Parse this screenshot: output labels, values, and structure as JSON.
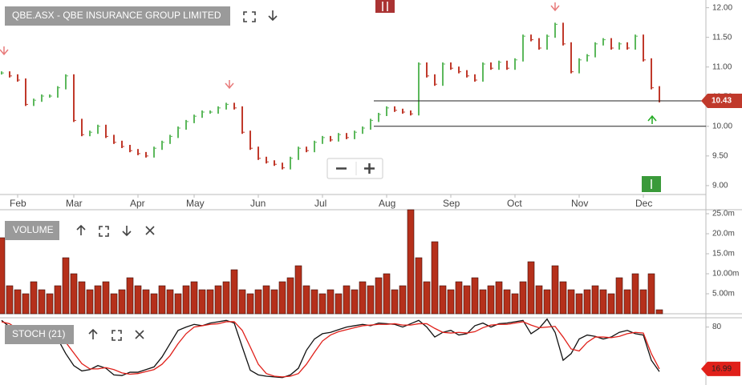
{
  "chart_data": [
    {
      "type": "stock",
      "title": "QBE.ASX - QBE INSURANCE GROUP LIMITED",
      "up_color": "#5cb85c",
      "down_color": "#c0392b",
      "values": [
        10.9,
        10.85,
        10.78,
        10.37,
        10.44,
        10.51,
        10.51,
        10.65,
        10.85,
        10.1,
        9.86,
        9.9,
        10.0,
        9.83,
        9.73,
        9.66,
        9.59,
        9.54,
        9.5,
        9.63,
        9.73,
        9.83,
        9.97,
        10.08,
        10.17,
        10.24,
        10.24,
        10.31,
        10.37,
        10.31,
        9.9,
        9.63,
        9.46,
        9.4,
        9.36,
        9.3,
        9.46,
        9.63,
        9.59,
        9.73,
        9.81,
        9.77,
        9.86,
        9.81,
        9.9,
        9.97,
        10.1,
        10.2,
        10.31,
        10.27,
        10.24,
        10.21,
        11.05,
        10.85,
        10.71,
        11.05,
        10.98,
        10.92,
        10.85,
        10.78,
        11.05,
        10.98,
        11.08,
        10.98,
        11.12,
        11.52,
        11.46,
        11.32,
        11.52,
        11.72,
        11.39,
        10.92,
        11.12,
        11.19,
        11.39,
        11.46,
        11.32,
        11.39,
        11.32,
        11.52,
        11.12,
        10.65,
        10.43
      ],
      "levels": [
        10.43,
        10
      ],
      "ylim": [
        8.85,
        12.13
      ],
      "yticks": [
        {
          "value": 12,
          "label": "12.00"
        },
        {
          "value": 11.5,
          "label": "11.50"
        },
        {
          "value": 11,
          "label": "11.00"
        },
        {
          "value": 10.5,
          "label": "10.50"
        },
        {
          "value": 10,
          "label": "10.00"
        },
        {
          "value": 9.5,
          "label": "9.50"
        },
        {
          "value": 9,
          "label": "9.00"
        }
      ],
      "xticks": [
        {
          "value": 2,
          "label": "Feb"
        },
        {
          "value": 9,
          "label": "Mar"
        },
        {
          "value": 17,
          "label": "Apr"
        },
        {
          "value": 24,
          "label": "May"
        },
        {
          "value": 32,
          "label": "Jun"
        },
        {
          "value": 40,
          "label": "Jul"
        },
        {
          "value": 48,
          "label": "Aug"
        },
        {
          "value": 56,
          "label": "Sep"
        },
        {
          "value": 64,
          "label": "Oct"
        },
        {
          "value": 72,
          "label": "Nov"
        },
        {
          "value": 80,
          "label": "Dec"
        }
      ]
    },
    {
      "type": "bar",
      "title": "VOLUME",
      "color": "#b5301b",
      "values": [
        19,
        7,
        6,
        5,
        8,
        6,
        5,
        7,
        14,
        10,
        8,
        6,
        7,
        8,
        5,
        6,
        9,
        7,
        6,
        5,
        7,
        6,
        5,
        7,
        8,
        6,
        6,
        7,
        8,
        11,
        6,
        5,
        6,
        7,
        6,
        8,
        9,
        12,
        7,
        6,
        5,
        6,
        5,
        7,
        6,
        8,
        7,
        9,
        10,
        6,
        7,
        26,
        14,
        8,
        18,
        7,
        6,
        8,
        7,
        9,
        6,
        7,
        8,
        6,
        5,
        8,
        13,
        7,
        6,
        12,
        8,
        6,
        5,
        6,
        7,
        6,
        5,
        9,
        6,
        10,
        6,
        10,
        1
      ],
      "ylim": [
        0,
        26
      ],
      "yticks": [
        {
          "value": 25,
          "label": "25.0m"
        },
        {
          "value": 20,
          "label": "20.0m"
        },
        {
          "value": 15,
          "label": "15.0m"
        },
        {
          "value": 10,
          "label": "10.00m"
        },
        {
          "value": 5,
          "label": "5.00m"
        }
      ]
    },
    {
      "type": "line",
      "title": "STOCH (21)",
      "series": [
        {
          "color": "#111111",
          "values": [
            90,
            80,
            62,
            60,
            75,
            72,
            68,
            62,
            40,
            22,
            14,
            16,
            22,
            18,
            8,
            7,
            12,
            12,
            16,
            20,
            35,
            55,
            75,
            80,
            84,
            82,
            86,
            88,
            90,
            86,
            50,
            15,
            8,
            6,
            5,
            4,
            8,
            18,
            45,
            62,
            70,
            72,
            76,
            80,
            82,
            84,
            82,
            86,
            85,
            84,
            80,
            85,
            90,
            80,
            65,
            72,
            75,
            68,
            70,
            82,
            86,
            80,
            85,
            86,
            88,
            90,
            70,
            78,
            92,
            72,
            30,
            40,
            62,
            68,
            66,
            62,
            65,
            72,
            75,
            70,
            68,
            30,
            13
          ]
        },
        {
          "color": "#e0201a",
          "values": [
            88,
            85,
            77,
            67,
            66,
            69,
            72,
            67,
            57,
            41,
            25,
            17,
            17,
            19,
            16,
            11,
            9,
            10,
            13,
            16,
            24,
            37,
            55,
            70,
            80,
            82,
            84,
            85,
            88,
            88,
            75,
            50,
            24,
            10,
            6,
            5,
            6,
            10,
            24,
            42,
            59,
            68,
            73,
            76,
            79,
            82,
            83,
            84,
            84,
            85,
            83,
            83,
            85,
            85,
            78,
            72,
            71,
            72,
            71,
            73,
            79,
            83,
            84,
            84,
            86,
            88,
            83,
            79,
            80,
            81,
            65,
            47,
            44,
            57,
            65,
            65,
            64,
            66,
            70,
            72,
            71,
            40,
            16.99
          ]
        }
      ],
      "ylim": [
        0,
        100
      ],
      "yticks": [
        80
      ]
    }
  ]
}
